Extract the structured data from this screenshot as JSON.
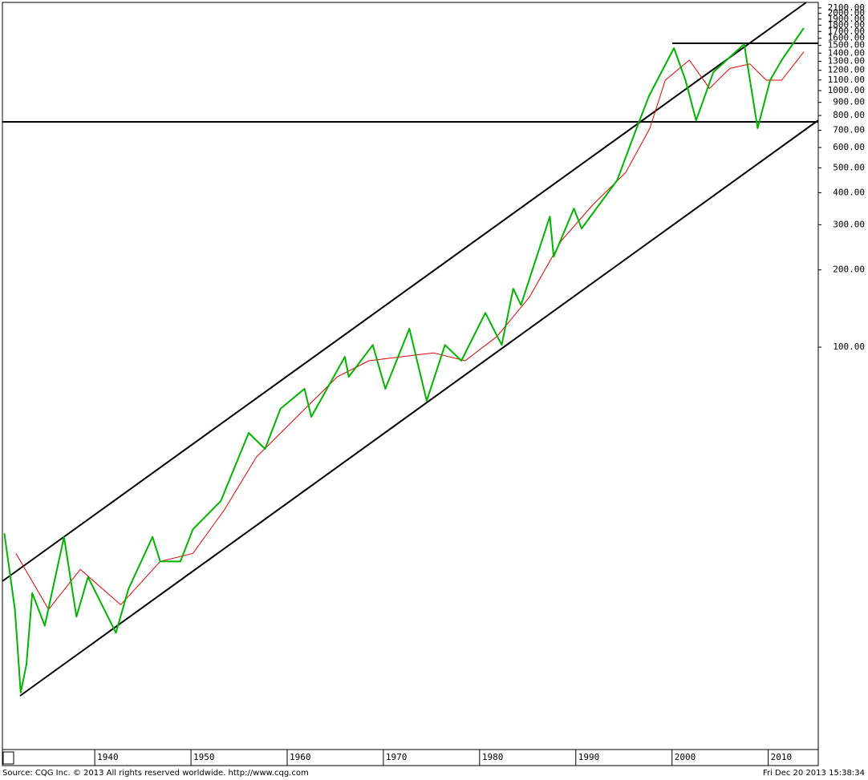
{
  "chart_data": {
    "type": "line",
    "x": [
      1930.6,
      1931.7,
      1932.3,
      1932.9,
      1933.5,
      1934.8,
      1936.8,
      1938.1,
      1939.3,
      1942.2,
      1943.5,
      1946.0,
      1946.8,
      1948.9,
      1950.2,
      1953.1,
      1956.0,
      1957.7,
      1959.3,
      1961.8,
      1962.5,
      1966.0,
      1966.4,
      1968.9,
      1970.2,
      1972.7,
      1974.5,
      1976.4,
      1978.1,
      1980.6,
      1982.3,
      1983.5,
      1984.3,
      1987.3,
      1987.7,
      1989.8,
      1990.6,
      1994.3,
      1996.0,
      1997.6,
      2000.2,
      2001.4,
      2002.5,
      2004.3,
      2007.5,
      2008.9,
      2010.2,
      2011.4,
      2013.7
    ],
    "series": [
      {
        "color": "#00b400",
        "values": [
          18.8,
          9.5,
          4.5,
          5.8,
          11,
          8.2,
          18.2,
          8.9,
          12.7,
          7.7,
          11.4,
          18.2,
          14.6,
          14.6,
          19.5,
          25.1,
          46.3,
          40.1,
          57.5,
          68.8,
          53.5,
          91.7,
          76.6,
          102,
          68.8,
          118,
          61.8,
          102,
          88.5,
          136,
          102,
          169,
          146,
          323,
          225,
          347,
          290,
          447,
          663,
          951,
          1464,
          1098,
          766,
          1180,
          1518,
          713,
          1098,
          1315,
          1754
        ]
      }
    ],
    "ma": {
      "color": "#e00000",
      "x": [
        1931.8,
        1935.2,
        1938.5,
        1942.7,
        1946.8,
        1950.2,
        1953.5,
        1956.8,
        1961.0,
        1965.2,
        1968.5,
        1971.8,
        1975.2,
        1978.5,
        1981.8,
        1985.2,
        1988.5,
        1991.8,
        1995.2,
        1997.7,
        1999.3,
        2001.8,
        2003.9,
        2006.0,
        2008.1,
        2009.8,
        2011.4,
        2013.7
      ],
      "values": [
        15.7,
        9.5,
        13.6,
        9.9,
        14.6,
        15.7,
        23.3,
        37.3,
        53.5,
        76.6,
        88.5,
        91.7,
        95,
        88.5,
        110,
        157,
        260,
        360,
        480,
        713,
        1098,
        1315,
        1020,
        1220,
        1270,
        1098,
        1098,
        1415
      ]
    },
    "log_scale": true,
    "xlim": [
      1930.4,
      2015.2
    ],
    "xticks": [
      1940,
      1950,
      1960,
      1970,
      1980,
      1990,
      2000,
      2010
    ],
    "ylim": [
      2.7,
      2207
    ],
    "yticks": [
      {
        "value": 100,
        "label": "100.00"
      },
      {
        "value": 200,
        "label": "200.00"
      },
      {
        "value": 300,
        "label": "300.00"
      },
      {
        "value": 400,
        "label": "400.00"
      },
      {
        "value": 500,
        "label": "500.00"
      },
      {
        "value": 600,
        "label": "600.00"
      },
      {
        "value": 700,
        "label": "700.00"
      },
      {
        "value": 800,
        "label": "800.00"
      },
      {
        "value": 900,
        "label": "900.00"
      },
      {
        "value": 1000,
        "label": "1000.00"
      },
      {
        "value": 1100,
        "label": "1100.00"
      },
      {
        "value": 1200,
        "label": "1200.00"
      },
      {
        "value": 1300,
        "label": "1300.00"
      },
      {
        "value": 1400,
        "label": "1400.00"
      },
      {
        "value": 1500,
        "label": "1500.00"
      },
      {
        "value": 1600,
        "label": "1600.00"
      },
      {
        "value": 1700,
        "label": "1700.00"
      },
      {
        "value": 1800,
        "label": "1800.00"
      },
      {
        "value": 1900,
        "label": "1900.00"
      },
      {
        "value": 2000,
        "label": "2000.00"
      },
      {
        "value": 2100,
        "label": "2100.00"
      }
    ],
    "source": "Source: CQG Inc. © 2013 All rights reserved worldwide. http://www.cqg.com",
    "timestamp": "Fri Dec 20 2013 15:38:34"
  }
}
